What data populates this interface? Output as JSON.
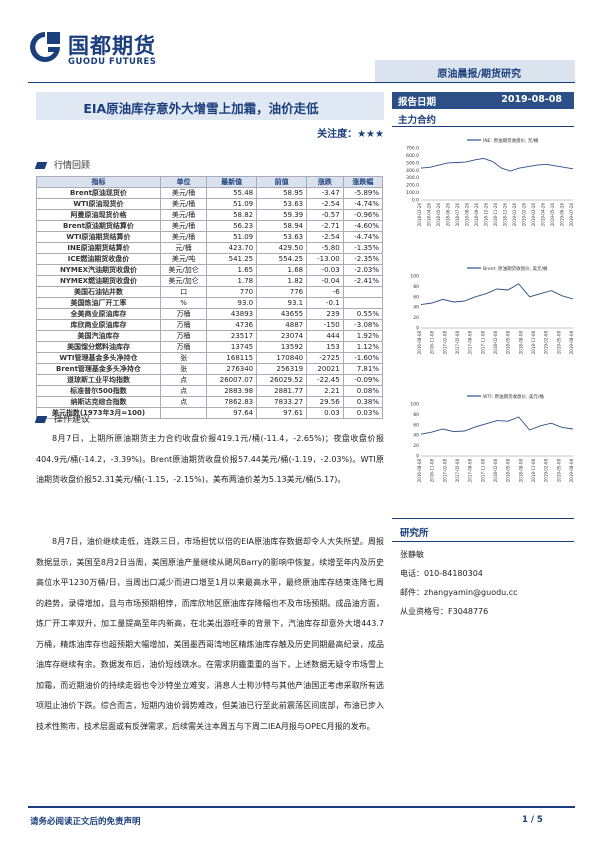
{
  "header": {
    "logo_cn": "国都期货",
    "logo_en": "GUODU FUTURES",
    "report_type": "原油晨报/期货研究",
    "title": "EIA原油库存意外大增雪上加霜，油价走低",
    "date_label": "报告日期",
    "date_value": "2019-08-08",
    "focus_label": "关注度：★★★",
    "main_contract": "主力合约"
  },
  "market": {
    "section_title": "行情回顾",
    "columns": [
      "指标",
      "单位",
      "最新值",
      "前值",
      "涨跌",
      "涨跌幅"
    ],
    "rows": [
      [
        "Brent原油现货价",
        "美元/桶",
        "55.48",
        "58.95",
        "-3.47",
        "-5.89%"
      ],
      [
        "WTI原油现货价",
        "美元/桶",
        "51.09",
        "53.63",
        "-2.54",
        "-4.74%"
      ],
      [
        "阿曼原油现货价格",
        "美元/桶",
        "58.82",
        "59.39",
        "-0.57",
        "-0.96%"
      ],
      [
        "Brent原油期货结算价",
        "美元/桶",
        "56.23",
        "58.94",
        "-2.71",
        "-4.60%"
      ],
      [
        "WTI原油期货结算价",
        "美元/桶",
        "51.09",
        "53.63",
        "-2.54",
        "-4.74%"
      ],
      [
        "INE原油期货结算价",
        "元/桶",
        "423.70",
        "429.50",
        "-5.80",
        "-1.35%"
      ],
      [
        "ICE燃油期货收盘价",
        "美元/吨",
        "541.25",
        "554.25",
        "-13.00",
        "-2.35%"
      ],
      [
        "NYMEX汽油期货收盘价",
        "美元/加仑",
        "1.65",
        "1.68",
        "-0.03",
        "-2.03%"
      ],
      [
        "NYMEX燃油期货收盘价",
        "美元/加仑",
        "1.78",
        "1.82",
        "-0.04",
        "-2.41%"
      ],
      [
        "美国石油钻井数",
        "口",
        "770",
        "776",
        "-6",
        ""
      ],
      [
        "美国炼油厂开工率",
        "%",
        "93.0",
        "93.1",
        "-0.1",
        ""
      ],
      [
        "全美商业原油库存",
        "万桶",
        "43893",
        "43655",
        "239",
        "0.55%"
      ],
      [
        "库欣商业原油库存",
        "万桶",
        "4736",
        "4887",
        "-150",
        "-3.08%"
      ],
      [
        "美国汽油库存",
        "万桶",
        "23517",
        "23074",
        "444",
        "1.92%"
      ],
      [
        "美国馏分燃料油库存",
        "万桶",
        "13745",
        "13592",
        "153",
        "1.12%"
      ],
      [
        "WTI管理基金多头净持仓",
        "张",
        "168115",
        "170840",
        "-2725",
        "-1.60%"
      ],
      [
        "Brent管理基金多头净持仓",
        "张",
        "276340",
        "256319",
        "20021",
        "7.81%"
      ],
      [
        "道琼斯工业平均指数",
        "点",
        "26007.07",
        "26029.52",
        "-22.45",
        "-0.09%"
      ],
      [
        "标准普尔500指数",
        "点",
        "2883.98",
        "2881.77",
        "2.21",
        "0.08%"
      ],
      [
        "纳斯达克综合指数",
        "点",
        "7862.83",
        "7833.27",
        "29.56",
        "0.38%"
      ],
      [
        "美元指数(1973年3月=100)",
        "",
        "97.64",
        "97.61",
        "0.03",
        "0.03%"
      ]
    ]
  },
  "advice": {
    "section_title": "操作建议",
    "paragraphs": [
      "8月7日，上期所原油期货主力合约收盘价报419.1元/桶(-11.4，-2.65%)；夜盘收盘价报404.9元/桶(-14.2，-3.39%)。Brent原油期货收盘价报57.44美元/桶(-1.19，-2.03%)。WTI原油期货收盘价报52.31美元/桶(-1.15，-2.15%)，美布两油价差为5.13美元/桶(5.17)。",
      "8月7日，油价继续走低，连跌三日，市场担忧以倍的EIA原油库存数据却令人大失所望。周报数据显示，美国至8月2日当周，美国原油产量继续从飓风Barry的影响中恢复，续增至年内及历史高位水平1230万桶/日，当周出口减少而进口增至1月以来最高水平，最终原油库存结束连降七周的趋势，录得增加，且与市场预期相悖，而库欣地区原油库存降幅也不及市场预期。成品油方面，炼厂开工率双升，加工量提高至年内新高，在北美出游旺季的背景下，汽油库存却意外大增443.7万桶，精炼油库存也超预期大幅增加，美国墨西哥湾地区精炼油库存触及历史同期最高纪录，成品油库存继续有余。数据发布后，油价短线跳水。在需求阴霾重重的当下，上述数据无疑令市场雪上加霜，而近期油价的持续走弱也令沙特坐立难安，消息人士称沙特与其他产油国正考虑采取所有选项阻止油价下跌。综合而言，短期内油价弱势难改，但美油已行至此前震荡区间底部，布油已步入技术性熊市，技术层面或有反弹需求，后续需关注本周五与下周二IEA月报与OPEC月报的发布。"
    ]
  },
  "charts": [
    {
      "legend": "INE: 原油期货收盘价, 元/桶",
      "ylim": [
        0,
        700
      ],
      "ticks": [
        "700.0",
        "600.0",
        "500.0",
        "400.0",
        "300.0",
        "200.0",
        "100.0",
        "0.0"
      ],
      "xlabels": [
        "2018-03-26",
        "2018-04-26",
        "2018-05-26",
        "2018-06-26",
        "2018-07-26",
        "2018-08-26",
        "2018-09-26",
        "2018-10-26",
        "2018-11-26",
        "2018-12-26",
        "2019-01-26",
        "2019-02-26",
        "2019-03-26",
        "2019-04-26",
        "2019-05-26",
        "2019-06-26",
        "2019-07-26"
      ],
      "values": [
        430,
        440,
        470,
        500,
        505,
        510,
        540,
        560,
        520,
        430,
        390,
        430,
        450,
        470,
        480,
        460,
        440,
        420
      ]
    },
    {
      "legend": "Brent: 原油期货收盘价, 美元/桶",
      "ylim": [
        0,
        100
      ],
      "ticks": [
        "100",
        "80",
        "60",
        "40",
        "20",
        "0"
      ],
      "xlabels": [
        "2016-08-08",
        "2016-11-08",
        "2017-02-08",
        "2017-05-08",
        "2017-08-08",
        "2017-11-08",
        "2018-02-08",
        "2018-05-08",
        "2018-08-08",
        "2018-11-08",
        "2019-02-08",
        "2019-05-08",
        "2019-08-08"
      ],
      "values": [
        45,
        48,
        55,
        50,
        52,
        60,
        66,
        75,
        73,
        85,
        60,
        66,
        72,
        62,
        56
      ]
    },
    {
      "legend": "WTI: 原油期货收盘价, 美元/桶",
      "ylim": [
        0,
        100
      ],
      "ticks": [
        "100",
        "80",
        "60",
        "40",
        "20",
        "0"
      ],
      "xlabels": [
        "2016-08-08",
        "2016-11-08",
        "2017-02-08",
        "2017-05-08",
        "2017-08-08",
        "2017-11-08",
        "2018-02-08",
        "2018-05-08",
        "2018-08-08",
        "2018-11-08",
        "2019-02-08",
        "2019-05-08",
        "2019-08-08"
      ],
      "values": [
        42,
        46,
        52,
        47,
        48,
        56,
        62,
        68,
        67,
        75,
        50,
        58,
        63,
        55,
        52
      ]
    }
  ],
  "research": {
    "title": "研究所",
    "name": "张静敏",
    "phone": "电话：010-84180304",
    "email": "邮件：zhangyamin@guodu.cc",
    "license": "从业资格号：F3048776"
  },
  "footer": {
    "disclaimer": "请务必阅读正文后的免责声明",
    "page": "1 / 5"
  },
  "colors": {
    "brand": "#1b3f7c",
    "line": "#2b4f86"
  }
}
